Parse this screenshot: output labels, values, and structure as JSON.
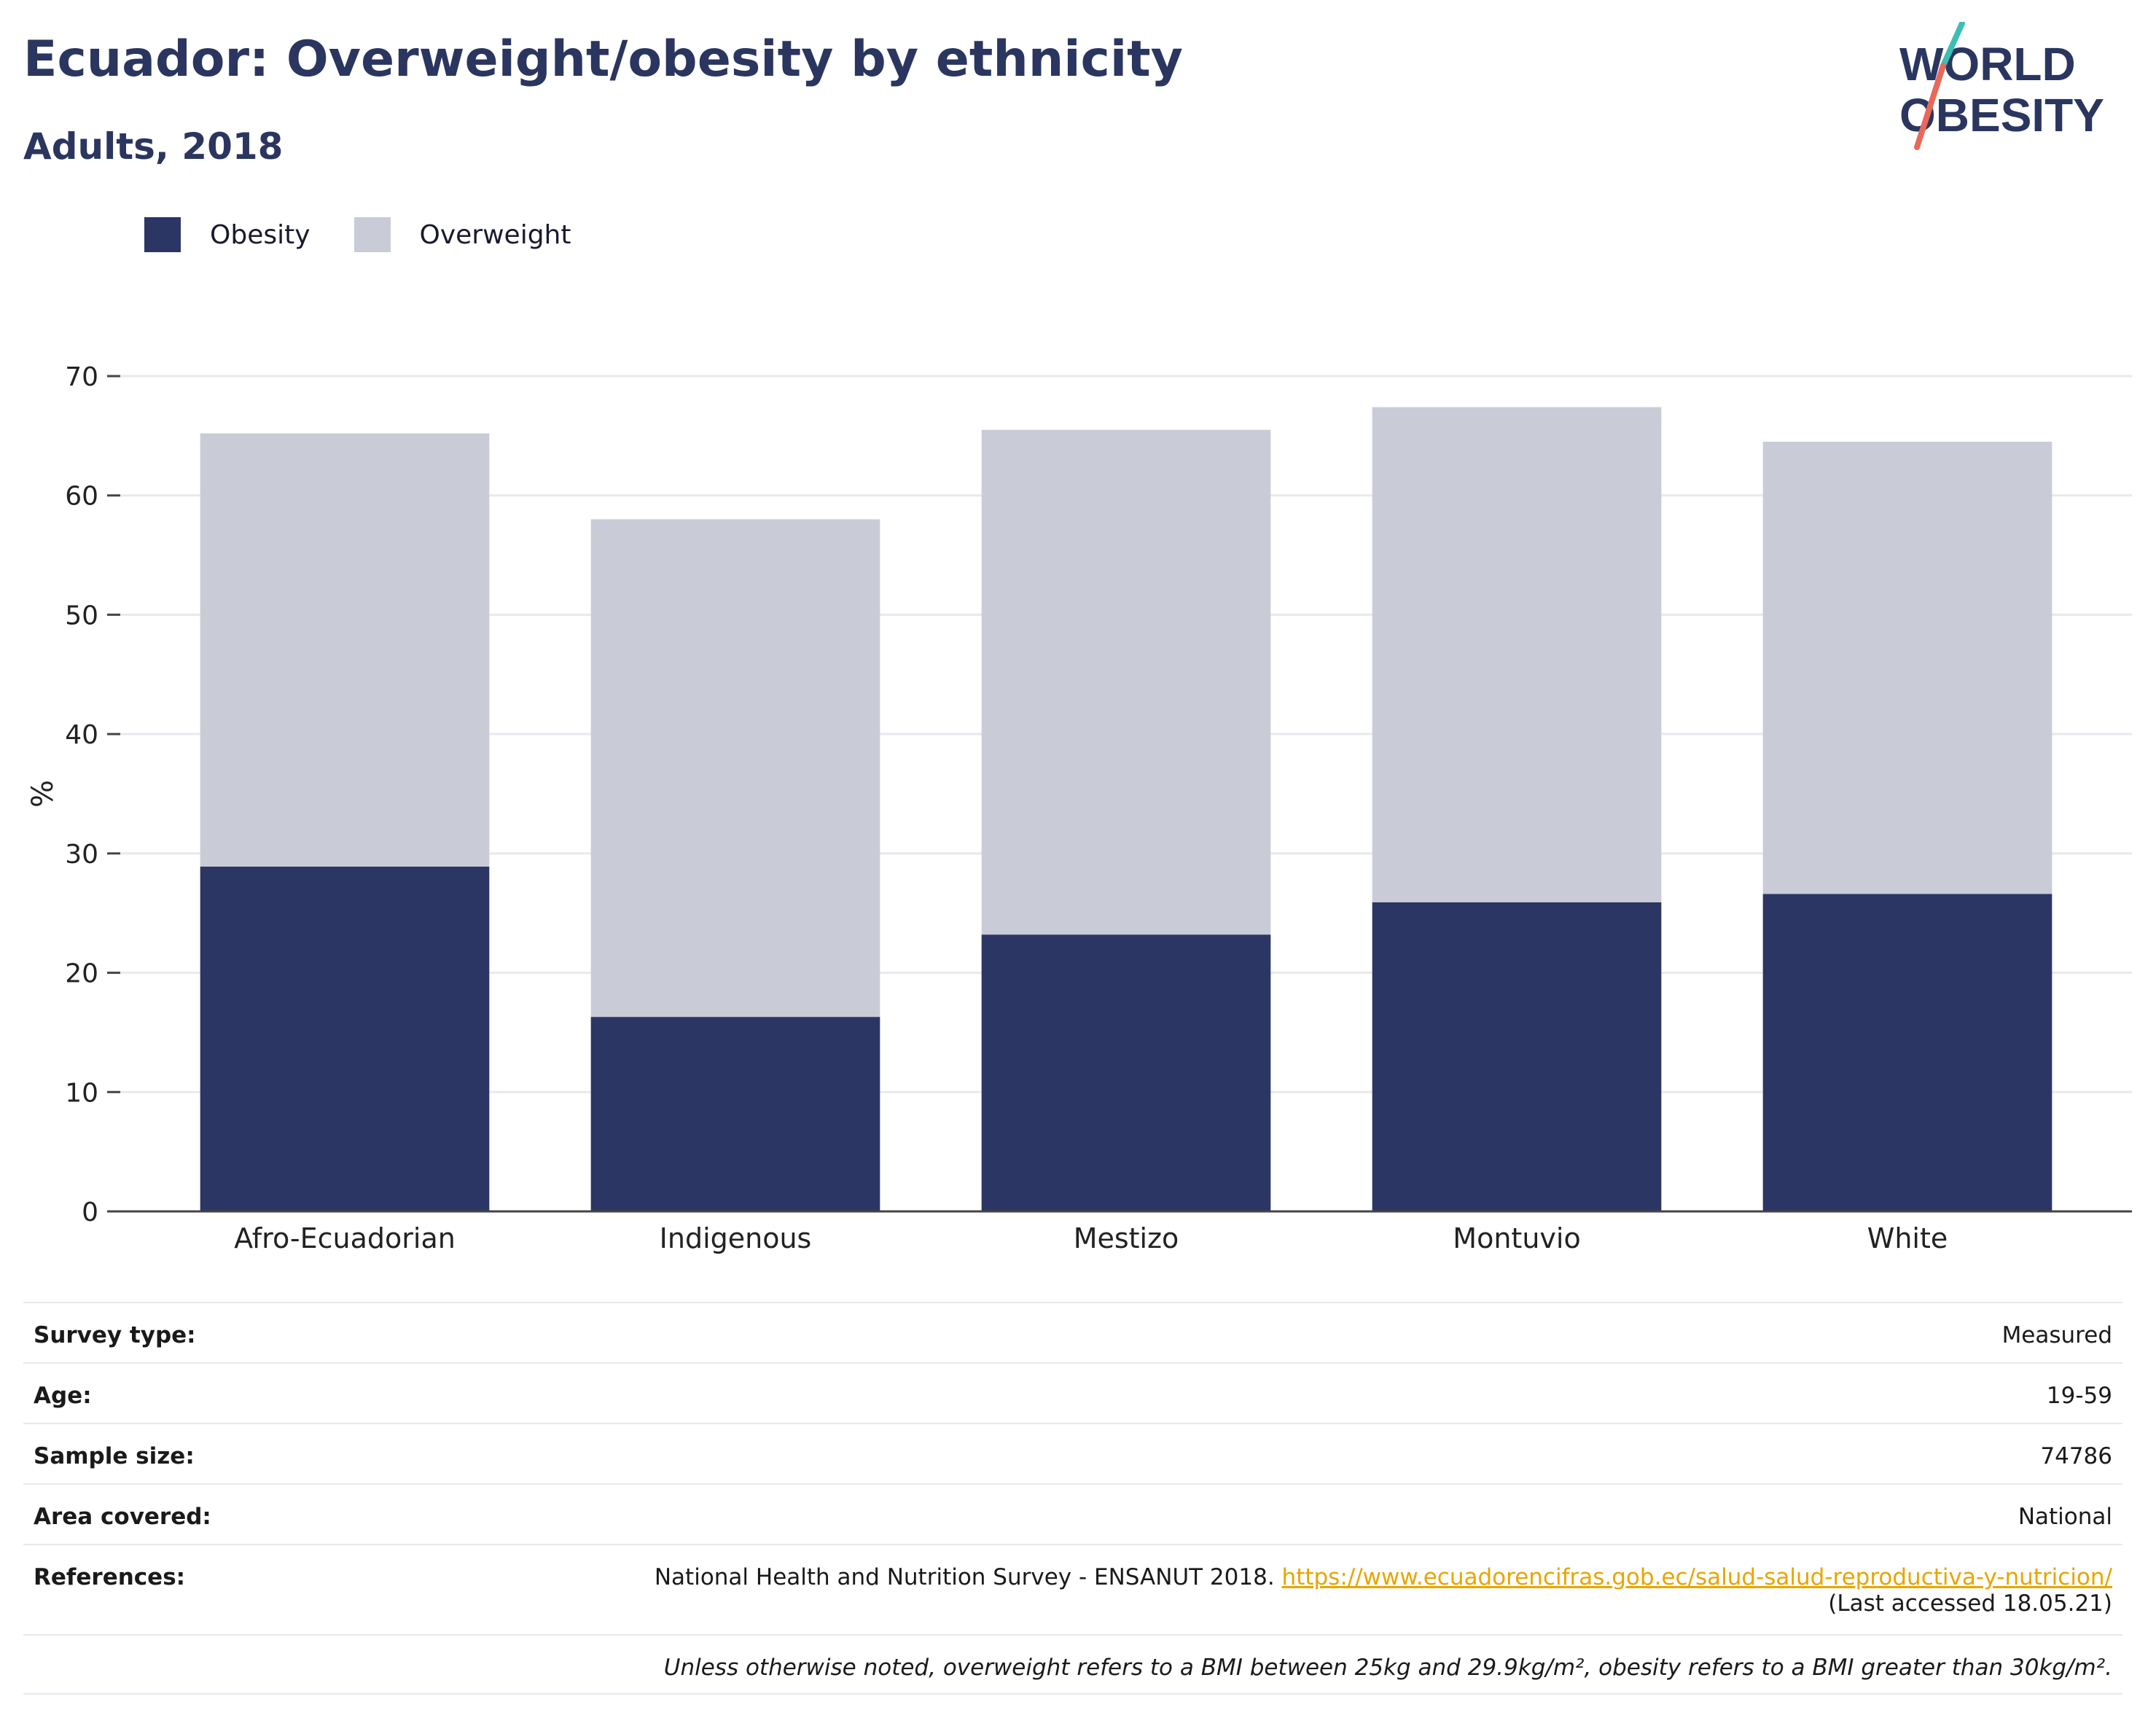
{
  "header": {
    "title": "Ecuador: Overweight/obesity by ethnicity",
    "subtitle": "Adults, 2018"
  },
  "logo": {
    "line1": "WORLD",
    "line2": "OBESITY",
    "icon": "world-obesity-logo"
  },
  "colors": {
    "obesity": "#2b3664",
    "overweight": "#c9cbd7",
    "title": "#2a365f",
    "link": "#e8a500",
    "logo_teal": "#3bbfb5",
    "logo_red": "#e8685a"
  },
  "chart_data": {
    "type": "bar",
    "stacked": true,
    "categories": [
      "Afro-Ecuadorian",
      "Indigenous",
      "Mestizo",
      "Montuvio",
      "White"
    ],
    "series": [
      {
        "name": "Obesity",
        "values": [
          28.9,
          16.3,
          23.2,
          25.9,
          26.6
        ]
      },
      {
        "name": "Overweight",
        "values": [
          36.3,
          41.7,
          42.3,
          41.5,
          37.9
        ]
      }
    ],
    "ylabel": "%",
    "ylim": [
      0,
      70
    ],
    "yticks": [
      0,
      10,
      20,
      30,
      40,
      50,
      60,
      70
    ],
    "grid": true,
    "legend_position": "top-left"
  },
  "meta": {
    "rows": [
      {
        "label": "Survey type:",
        "value": "Measured"
      },
      {
        "label": "Age:",
        "value": "19-59"
      },
      {
        "label": "Sample size:",
        "value": "74786"
      },
      {
        "label": "Area covered:",
        "value": "National"
      }
    ],
    "references_label": "References:",
    "references_text": "National Health and Nutrition Survey - ENSANUT 2018.",
    "references_link": "https://www.ecuadorencifras.gob.ec/salud-salud-reproductiva-y-nutricion/",
    "references_accessed": "(Last accessed 18.05.21)",
    "note": "Unless otherwise noted, overweight refers to a BMI between 25kg and 29.9kg/m², obesity refers to a BMI greater than 30kg/m²."
  }
}
